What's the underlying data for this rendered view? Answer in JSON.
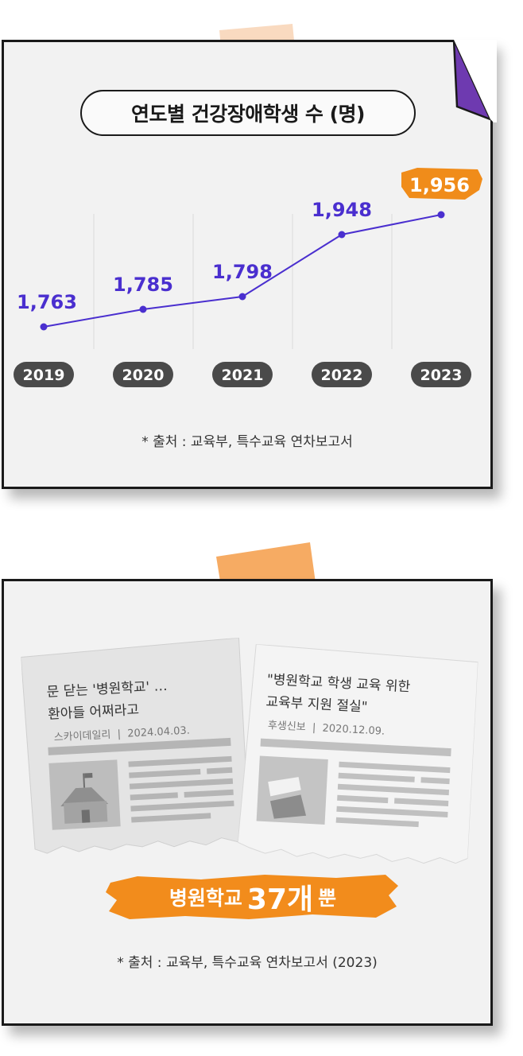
{
  "chart_data": {
    "type": "line",
    "title": "연도별 건강장애학생 수 (명)",
    "categories": [
      "2019",
      "2020",
      "2021",
      "2022",
      "2023"
    ],
    "values": [
      1763,
      1785,
      1798,
      1948,
      1956
    ],
    "value_labels": [
      "1,763",
      "1,785",
      "1,798",
      "1,948",
      "1,956"
    ],
    "highlight_index": 4,
    "grid": true,
    "source": "* 출처 : 교육부, 특수교육 연차보고서"
  },
  "colors": {
    "line": "#4a2fcf",
    "highlight": "#f08c1a",
    "pill": "#4a4a4a",
    "fold": "#6e3ab0"
  },
  "news": {
    "paper1": {
      "headline": "문 닫는 '병원학교' …\n환아들 어쩌라고",
      "outlet": "스카이데일리",
      "date": "2024.04.03."
    },
    "paper2": {
      "headline": "\"병원학교 학생 교육 위한\n교육부 지원 절실\"",
      "outlet": "후생신보",
      "date": "2020.12.09."
    }
  },
  "banner": {
    "prefix": "병원학교",
    "count": "37개",
    "suffix": "뿐"
  },
  "source2": "* 출처 : 교육부, 특수교육 연차보고서 (2023)"
}
